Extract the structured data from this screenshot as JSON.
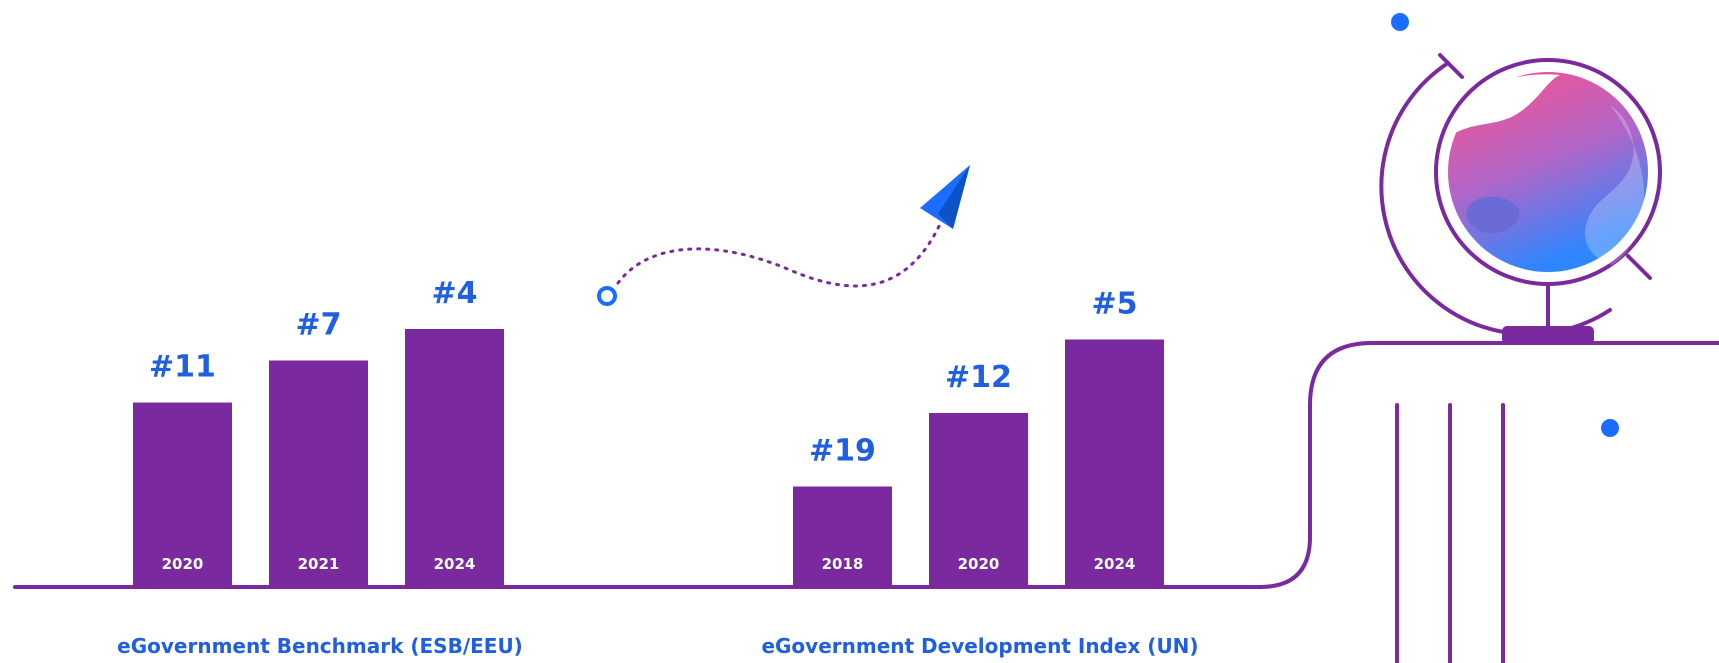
{
  "colors": {
    "bar": "#7a2a9e",
    "rank_text": "#1f5fe0",
    "year_text": "#ffffff",
    "accent_blue": "#1a6dff"
  },
  "icons": [
    "paper-plane-icon",
    "globe-icon"
  ],
  "chart_data": [
    {
      "type": "bar",
      "caption": "eGovernment Benchmark (ESB/EEU)",
      "categories": [
        "2020",
        "2021",
        "2024"
      ],
      "ranks": [
        "#11",
        "#7",
        "#4"
      ],
      "values": [
        11,
        7,
        4
      ],
      "note": "rank; shorter rank number shown as taller bar"
    },
    {
      "type": "bar",
      "caption": "eGovernment Development Index (UN)",
      "categories": [
        "2018",
        "2020",
        "2024"
      ],
      "ranks": [
        "#19",
        "#12",
        "#5"
      ],
      "values": [
        19,
        12,
        5
      ],
      "note": "rank; shorter rank number shown as taller bar"
    }
  ]
}
